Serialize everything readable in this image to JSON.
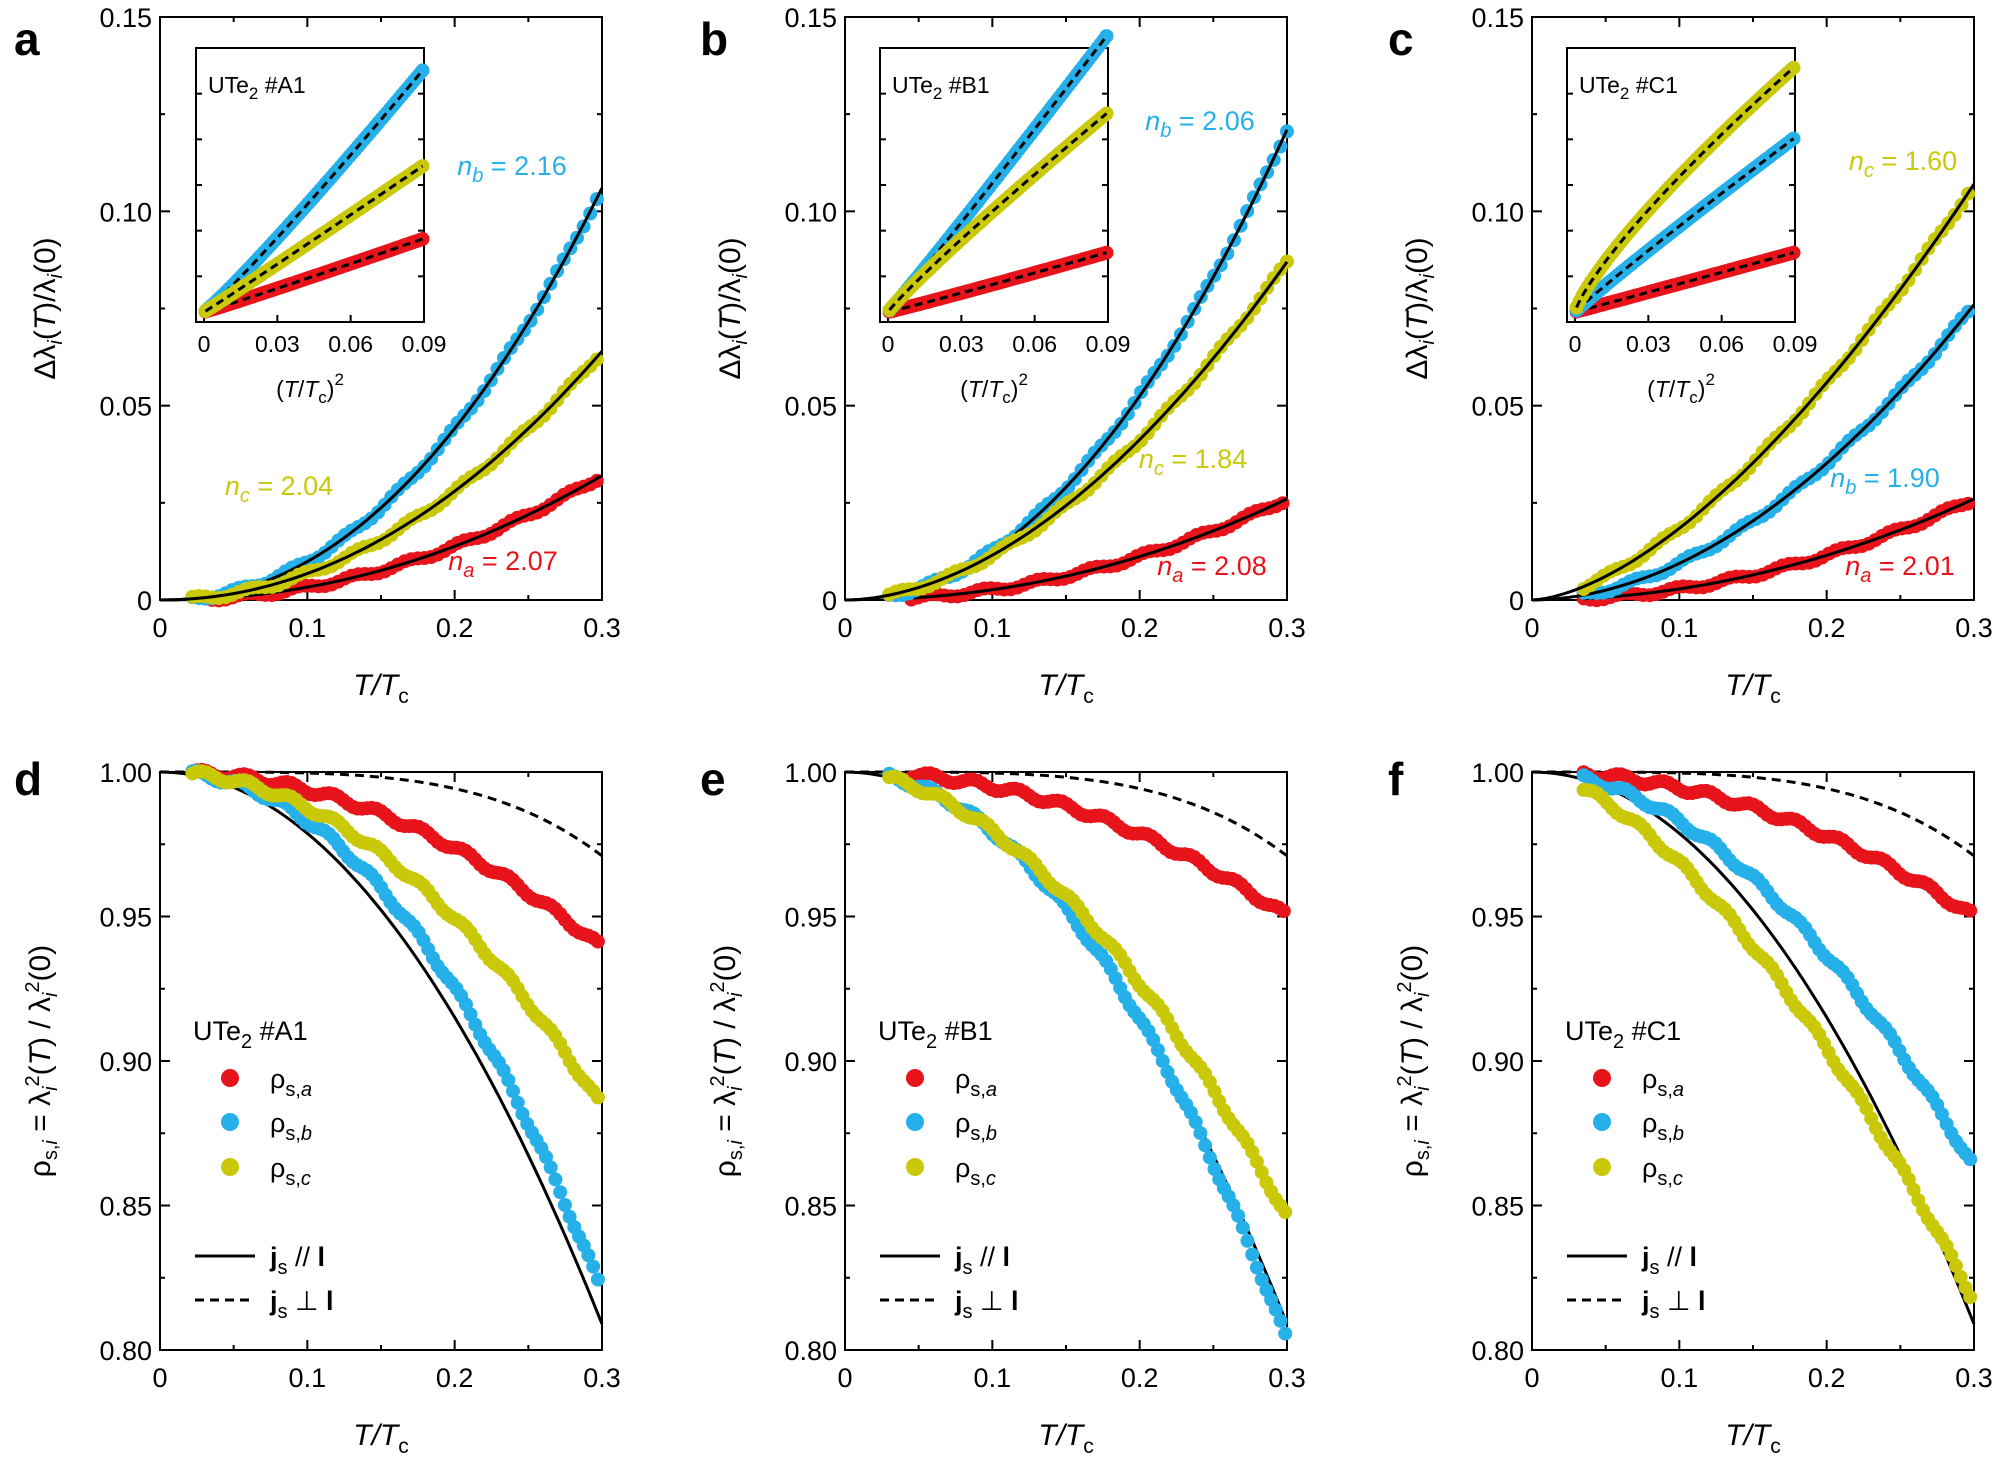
{
  "figure": {
    "colors": {
      "a": "#e8141b",
      "b": "#26b0ea",
      "c": "#c9c90a",
      "fit": "#000000"
    },
    "x_axis_label": "T/T",
    "x_axis_label_sub": "c",
    "x_ticks": [
      "0",
      "0.1",
      "0.2",
      "0.3"
    ],
    "top_y_label": "Δλi(T)/λi(0)",
    "top_y_ticks": [
      "0",
      "0.05",
      "0.10",
      "0.15"
    ],
    "inset_x_label": "(T/Tc)2",
    "inset_x_ticks": [
      "0",
      "0.03",
      "0.06",
      "0.09"
    ],
    "bottom_y_label": "ρs,i = λi2(T) / λi2(0)",
    "bottom_y_ticks": [
      "0.80",
      "0.85",
      "0.90",
      "0.95",
      "1.00"
    ],
    "legend": {
      "rho_a": "ρs,a",
      "rho_b": "ρs,b",
      "rho_c": "ρs,c",
      "parallel": "js // l",
      "perp": "js ⊥ l"
    }
  },
  "chart_data": [
    {
      "panel": "a",
      "type": "scatter",
      "title": "UTe2 #A1",
      "xlabel": "T/Tc",
      "ylabel": "Δλi(T)/λi(0)",
      "xlim": [
        0,
        0.3
      ],
      "ylim": [
        0,
        0.15
      ],
      "series": [
        {
          "name": "a",
          "n_label": "na = 2.07",
          "n": 2.07,
          "end": 0.032,
          "x0": 0.022,
          "fit_start": 0.0
        },
        {
          "name": "b",
          "n_label": "nb = 2.16",
          "n": 2.16,
          "end": 0.106,
          "x0": 0.022,
          "fit_start": 0.0
        },
        {
          "name": "c",
          "n_label": "nc = 2.04",
          "n": 2.04,
          "end": 0.064,
          "x0": 0.022,
          "fit_start": 0.0
        }
      ],
      "inset": {
        "xlabel": "(T/Tc)2",
        "xlim": [
          0,
          0.09
        ],
        "ticks": [
          "0",
          "0.03",
          "0.06",
          "0.09"
        ]
      }
    },
    {
      "panel": "b",
      "type": "scatter",
      "title": "UTe2 #B1",
      "xlabel": "T/Tc",
      "ylabel": "Δλi(T)/λi(0)",
      "xlim": [
        0,
        0.3
      ],
      "ylim": [
        0,
        0.15
      ],
      "series": [
        {
          "name": "a",
          "n_label": "na = 2.08",
          "n": 2.08,
          "end": 0.026,
          "x0": 0.045,
          "fit_start": 0.045
        },
        {
          "name": "b",
          "n_label": "nb = 2.06",
          "n": 2.06,
          "end": 0.121,
          "x0": 0.03,
          "fit_start": 0.0
        },
        {
          "name": "c",
          "n_label": "nc = 1.84",
          "n": 1.84,
          "end": 0.087,
          "x0": 0.03,
          "fit_start": 0.0
        }
      ],
      "inset": {
        "xlabel": "(T/Tc)2",
        "xlim": [
          0,
          0.09
        ],
        "ticks": [
          "0",
          "0.03",
          "0.06",
          "0.09"
        ]
      }
    },
    {
      "panel": "c",
      "type": "scatter",
      "title": "UTe2 #C1",
      "xlabel": "T/Tc",
      "ylabel": "Δλi(T)/λi(0)",
      "xlim": [
        0,
        0.3
      ],
      "ylim": [
        0,
        0.15
      ],
      "series": [
        {
          "name": "a",
          "n_label": "na = 2.01",
          "n": 2.01,
          "end": 0.026,
          "x0": 0.035,
          "fit_start": 0.035
        },
        {
          "name": "b",
          "n_label": "nb = 1.90",
          "n": 1.9,
          "end": 0.076,
          "x0": 0.035,
          "fit_start": 0.0
        },
        {
          "name": "c",
          "n_label": "nc = 1.60",
          "n": 1.6,
          "end": 0.107,
          "x0": 0.035,
          "fit_start": 0.0
        }
      ],
      "inset": {
        "xlabel": "(T/Tc)2",
        "xlim": [
          0,
          0.09
        ],
        "ticks": [
          "0",
          "0.03",
          "0.06",
          "0.09"
        ]
      }
    },
    {
      "panel": "d",
      "type": "scatter",
      "title": "UTe2 #A1",
      "xlabel": "T/Tc",
      "ylabel": "ρs,i",
      "xlim": [
        0,
        0.3
      ],
      "ylim": [
        0.8,
        1.0
      ],
      "series": [
        {
          "name": "a",
          "n": 2.07,
          "end": 0.939,
          "x0": 0.022
        },
        {
          "name": "b",
          "n": 2.16,
          "end": 0.82,
          "x0": 0.022
        },
        {
          "name": "c",
          "n": 2.04,
          "end": 0.884,
          "x0": 0.022
        }
      ],
      "fit_parallel": {
        "end": 0.809
      },
      "fit_perp": {
        "end": 0.971
      }
    },
    {
      "panel": "e",
      "type": "scatter",
      "title": "UTe2 #B1",
      "xlabel": "T/Tc",
      "ylabel": "ρs,i",
      "xlim": [
        0,
        0.3
      ],
      "ylim": [
        0.8,
        1.0
      ],
      "series": [
        {
          "name": "a",
          "n": 2.08,
          "end": 0.95,
          "x0": 0.045
        },
        {
          "name": "b",
          "n": 2.06,
          "end": 0.803,
          "x0": 0.03
        },
        {
          "name": "c",
          "n": 1.84,
          "end": 0.846,
          "x0": 0.03
        }
      ],
      "fit_parallel": {
        "end": 0.809
      },
      "fit_perp": {
        "end": 0.971
      }
    },
    {
      "panel": "f",
      "type": "scatter",
      "title": "UTe2 #C1",
      "xlabel": "T/Tc",
      "ylabel": "ρs,i",
      "xlim": [
        0,
        0.3
      ],
      "ylim": [
        0.8,
        1.0
      ],
      "series": [
        {
          "name": "a",
          "n": 2.01,
          "end": 0.95,
          "x0": 0.035
        },
        {
          "name": "b",
          "n": 1.9,
          "end": 0.863,
          "x0": 0.035
        },
        {
          "name": "c",
          "n": 1.6,
          "end": 0.817,
          "x0": 0.035
        }
      ],
      "fit_parallel": {
        "end": 0.809
      },
      "fit_perp": {
        "end": 0.971
      }
    }
  ]
}
